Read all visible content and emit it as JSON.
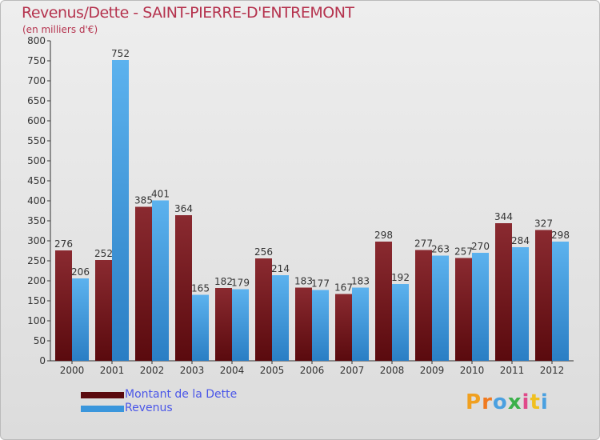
{
  "title": "Revenus/Dette - SAINT-PIERRE-D'ENTREMONT",
  "subtitle": "(en milliers d'€)",
  "logo_text": "Proxiti",
  "colors": {
    "dette": "#7a1a1e",
    "revenus": "#3a96dc",
    "title": "#b5334e",
    "legend_text": "#4a56e8"
  },
  "chart_data": {
    "type": "bar",
    "title": "Revenus/Dette - SAINT-PIERRE-D'ENTREMONT",
    "subtitle": "(en milliers d'€)",
    "categories": [
      "2000",
      "2001",
      "2002",
      "2003",
      "2004",
      "2005",
      "2006",
      "2007",
      "2008",
      "2009",
      "2010",
      "2011",
      "2012"
    ],
    "series": [
      {
        "name": "Montant de la Dette",
        "values": [
          276,
          252,
          385,
          364,
          182,
          256,
          183,
          167,
          298,
          277,
          257,
          344,
          327
        ]
      },
      {
        "name": "Revenus",
        "values": [
          206,
          752,
          401,
          165,
          179,
          214,
          177,
          183,
          192,
          263,
          270,
          284,
          298
        ]
      }
    ],
    "ylim": [
      0,
      800
    ],
    "yticks": [
      0,
      50,
      100,
      150,
      200,
      250,
      300,
      350,
      400,
      450,
      500,
      550,
      600,
      650,
      700,
      750,
      800
    ],
    "grid": false,
    "legend": "bottom-left"
  }
}
